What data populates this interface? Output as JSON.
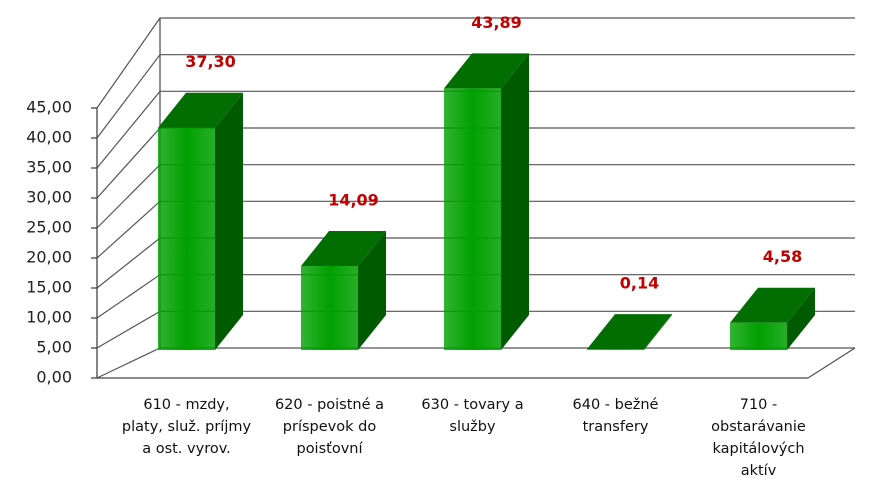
{
  "chart_data": {
    "type": "bar3d",
    "categories": [
      "610 - mzdy, platy, služ. príjmy a ost. vyrov.",
      "620 - poistné a príspevok do poisťovní",
      "630 - tovary a služby",
      "640 - bežné transfery",
      "710 - obstarávanie kapitálových aktív"
    ],
    "values": [
      37.3,
      14.09,
      43.89,
      0.14,
      4.58
    ],
    "value_labels": [
      "37,30",
      "14,09",
      "43,89",
      "0,14",
      "4,58"
    ],
    "color": "#00a000",
    "label_color": "#c00000",
    "ylim": [
      0,
      45
    ],
    "yticks": [
      {
        "value": 0,
        "label": "0,00"
      },
      {
        "value": 5,
        "label": "5,00"
      },
      {
        "value": 10,
        "label": "10,00"
      },
      {
        "value": 15,
        "label": "15,00"
      },
      {
        "value": 20,
        "label": "20,00"
      },
      {
        "value": 25,
        "label": "25,00"
      },
      {
        "value": 30,
        "label": "30,00"
      },
      {
        "value": 35,
        "label": "35,00"
      },
      {
        "value": 40,
        "label": "40,00"
      },
      {
        "value": 45,
        "label": "45,00"
      }
    ],
    "grid": true
  }
}
